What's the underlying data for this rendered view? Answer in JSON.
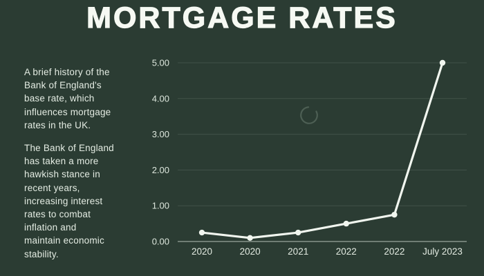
{
  "title": "MORTGAGE RATES",
  "sidebar": {
    "paragraph1": "A brief history of the\nBank of England's\nbase rate, which\ninfluences mortgage\nrates in the UK.",
    "paragraph2": "The Bank of England\nhas taken a more\nhawkish stance in\nrecent years,\nincreasing interest\nrates to combat\ninflation and\nmaintain economic\nstability."
  },
  "chart_data": {
    "type": "line",
    "categories": [
      "2020",
      "2020",
      "2021",
      "2022",
      "2022",
      "July 2023"
    ],
    "values": [
      0.25,
      0.1,
      0.25,
      0.5,
      0.75,
      5.0
    ],
    "ylim": [
      0,
      5
    ],
    "yticks": [
      {
        "value": 0,
        "label": "0.00"
      },
      {
        "value": 1,
        "label": "1.00"
      },
      {
        "value": 2,
        "label": "2.00"
      },
      {
        "value": 3,
        "label": "3.00"
      },
      {
        "value": 4,
        "label": "4.00"
      },
      {
        "value": 5,
        "label": "5.00"
      }
    ],
    "grid": true,
    "legend_position": "none",
    "line_color": "#f1f6ef",
    "marker": "circle"
  },
  "icons": {
    "loading_spinner": {
      "name": "loading-spinner",
      "color": "#4d5f54"
    }
  },
  "colors": {
    "background": "#2b3c33",
    "title_text": "#f6f9f3",
    "body_text": "#e4ece3",
    "axis_label": "#dde7dd",
    "gridline": "rgba(223,233,223,0.13)",
    "axis_line": "rgba(228,236,228,0.6)"
  }
}
